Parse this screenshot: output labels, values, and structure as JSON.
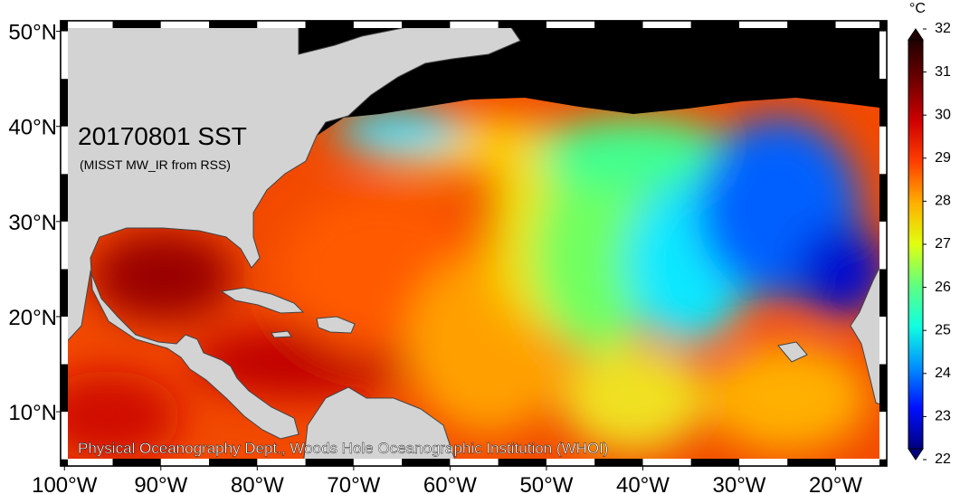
{
  "map": {
    "title": "20170801 SST",
    "subtitle": "(MISST MW_IR from RSS)",
    "credit": "Physical Oceanography Dept., Woods Hole Oceanographic Institution (WHOI)",
    "lon_range": [
      -100.4,
      -14.7
    ],
    "lat_range": [
      4.3,
      51.1
    ],
    "lon_ticks": [
      {
        "value": -100,
        "label": "100°W"
      },
      {
        "value": -90,
        "label": "90°W"
      },
      {
        "value": -80,
        "label": "80°W"
      },
      {
        "value": -70,
        "label": "70°W"
      },
      {
        "value": -60,
        "label": "60°W"
      },
      {
        "value": -50,
        "label": "50°W"
      },
      {
        "value": -40,
        "label": "40°W"
      },
      {
        "value": -30,
        "label": "30°W"
      },
      {
        "value": -20,
        "label": "20°W"
      }
    ],
    "lat_ticks": [
      {
        "value": 10,
        "label": "10°N"
      },
      {
        "value": 20,
        "label": "20°N"
      },
      {
        "value": 30,
        "label": "30°N"
      },
      {
        "value": 40,
        "label": "40°N"
      },
      {
        "value": 50,
        "label": "50°N"
      }
    ],
    "colorbar": {
      "unit": "°C",
      "range": [
        22,
        32
      ],
      "ticks": [
        22,
        23,
        24,
        25,
        26,
        27,
        28,
        29,
        30,
        31,
        32
      ],
      "colors": [
        "#00007f",
        "#0010ff",
        "#0090ff",
        "#10ffe0",
        "#60ff80",
        "#e0ff10",
        "#ffb000",
        "#ff4000",
        "#d00000",
        "#700000",
        "#200000"
      ]
    }
  }
}
